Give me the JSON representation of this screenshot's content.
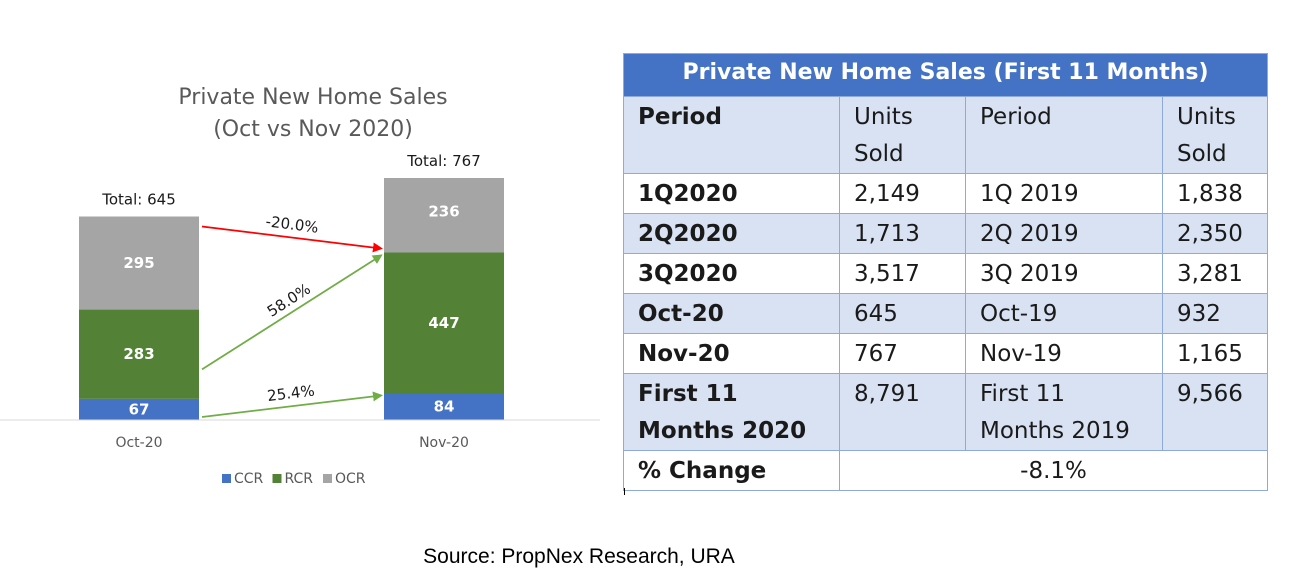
{
  "chart_data": {
    "type": "bar",
    "stacked": true,
    "title": "Private New Home Sales",
    "subtitle": "(Oct vs Nov 2020)",
    "categories": [
      "Oct-20",
      "Nov-20"
    ],
    "totals": [
      "Total: 645",
      "Total: 767"
    ],
    "series": [
      {
        "name": "CCR",
        "values": [
          67,
          84
        ],
        "color": "#4472c4"
      },
      {
        "name": "RCR",
        "values": [
          283,
          447
        ],
        "color": "#538135"
      },
      {
        "name": "OCR",
        "values": [
          295,
          236
        ],
        "color": "#a5a5a5"
      }
    ],
    "changes": [
      {
        "series": "OCR",
        "label": "-20.0%",
        "color": "#ff0000"
      },
      {
        "series": "RCR",
        "label": "58.0%",
        "color": "#70ad47"
      },
      {
        "series": "CCR",
        "label": "25.4%",
        "color": "#70ad47"
      }
    ],
    "ylim": [
      0,
      767
    ],
    "grid": false,
    "legend": "bottom"
  },
  "table": {
    "title": "Private New Home Sales (First 11 Months)",
    "header": {
      "period": "Period",
      "units_sold": "Units Sold",
      "period_prev": "Period",
      "units_sold_prev": "Units Sold"
    },
    "rows": [
      {
        "period": "1Q2020",
        "units": "2,149",
        "period_prev": "1Q 2019",
        "units_prev": "1,838"
      },
      {
        "period": "2Q2020",
        "units": "1,713",
        "period_prev": "2Q 2019",
        "units_prev": "2,350"
      },
      {
        "period": "3Q2020",
        "units": "3,517",
        "period_prev": "3Q 2019",
        "units_prev": "3,281"
      },
      {
        "period": "Oct-20",
        "units": "645",
        "period_prev": "Oct-19",
        "units_prev": "932"
      },
      {
        "period": "Nov-20",
        "units": "767",
        "period_prev": "Nov-19",
        "units_prev": "1,165"
      },
      {
        "period": "First 11 Months 2020",
        "units": "8,791",
        "period_prev": "First 11 Months 2019",
        "units_prev": "9,566"
      }
    ],
    "change": {
      "label": "% Change",
      "value": "-8.1%"
    }
  },
  "source": "Source: PropNex Research, URA"
}
